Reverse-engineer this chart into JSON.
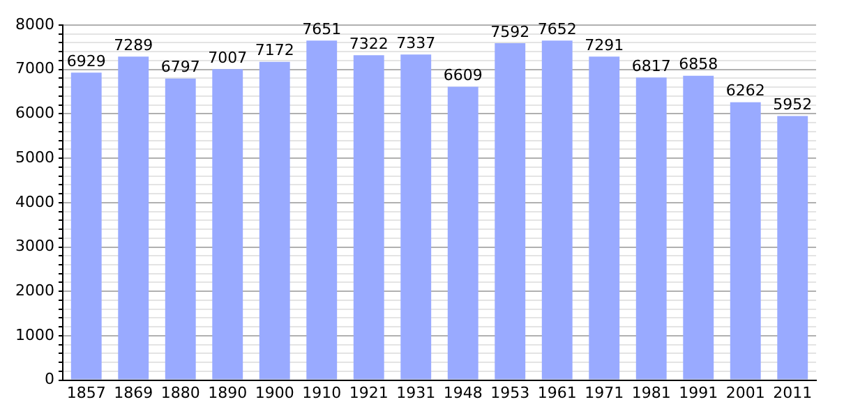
{
  "chart_data": {
    "type": "bar",
    "categories": [
      "1857",
      "1869",
      "1880",
      "1890",
      "1900",
      "1910",
      "1921",
      "1931",
      "1948",
      "1953",
      "1961",
      "1971",
      "1981",
      "1991",
      "2001",
      "2011"
    ],
    "values": [
      6929,
      7289,
      6797,
      7007,
      7172,
      7651,
      7322,
      7337,
      6609,
      7592,
      7652,
      7291,
      6817,
      6858,
      6262,
      5952
    ],
    "color": "#99aaff",
    "ylim": [
      0,
      8000
    ],
    "yticks": [
      0,
      {
        "value": 200,
        "label": null
      },
      {
        "value": 400,
        "label": null
      },
      {
        "value": 600,
        "label": null
      },
      {
        "value": 800,
        "label": null
      },
      1000,
      {
        "value": 1200,
        "label": null
      },
      {
        "value": 1400,
        "label": null
      },
      {
        "value": 1600,
        "label": null
      },
      {
        "value": 1800,
        "label": null
      },
      2000,
      {
        "value": 2200,
        "label": null
      },
      {
        "value": 2400,
        "label": null
      },
      {
        "value": 2600,
        "label": null
      },
      {
        "value": 2800,
        "label": null
      },
      3000,
      {
        "value": 3200,
        "label": null
      },
      {
        "value": 3400,
        "label": null
      },
      {
        "value": 3600,
        "label": null
      },
      {
        "value": 3800,
        "label": null
      },
      4000,
      {
        "value": 4200,
        "label": null
      },
      {
        "value": 4400,
        "label": null
      },
      {
        "value": 4600,
        "label": null
      },
      {
        "value": 4800,
        "label": null
      },
      5000,
      {
        "value": 5200,
        "label": null
      },
      {
        "value": 5400,
        "label": null
      },
      {
        "value": 5600,
        "label": null
      },
      {
        "value": 5800,
        "label": null
      },
      6000,
      {
        "value": 6200,
        "label": null
      },
      {
        "value": 6400,
        "label": null
      },
      {
        "value": 6600,
        "label": null
      },
      {
        "value": 6800,
        "label": null
      },
      7000,
      {
        "value": 7200,
        "label": null
      },
      {
        "value": 7400,
        "label": null
      },
      {
        "value": 7600,
        "label": null
      },
      {
        "value": 7800,
        "label": null
      },
      8000
    ],
    "grid": "y",
    "data_labels": true
  }
}
